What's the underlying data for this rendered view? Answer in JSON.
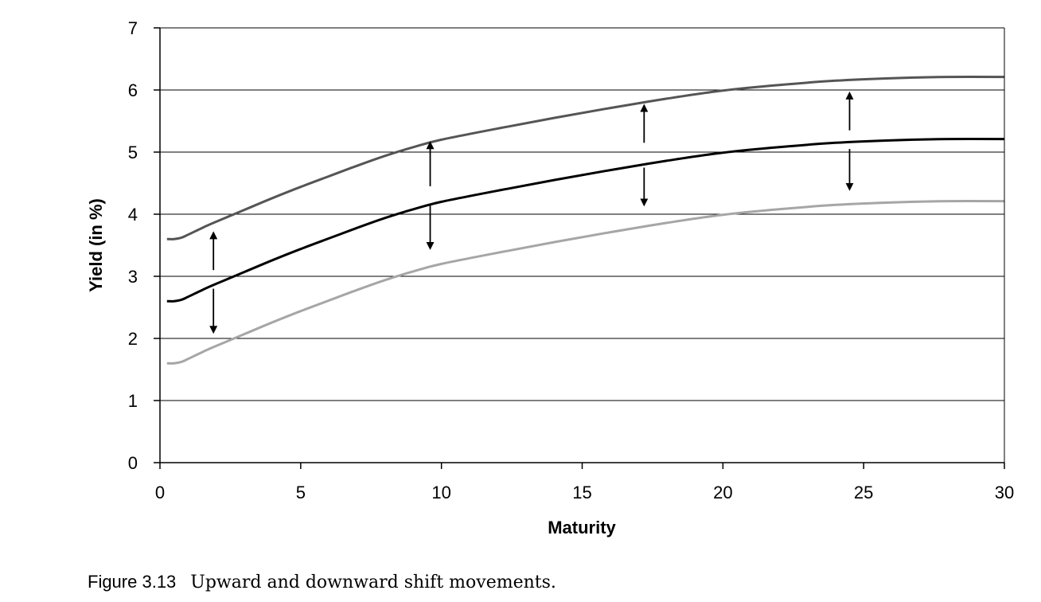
{
  "chart_data": {
    "type": "line",
    "title": "",
    "xlabel": "Maturity",
    "ylabel": "Yield (in %)",
    "xlim": [
      0,
      30
    ],
    "ylim": [
      0,
      7
    ],
    "xticks": [
      0,
      5,
      10,
      15,
      20,
      25,
      30
    ],
    "yticks": [
      0,
      1,
      2,
      3,
      4,
      5,
      6,
      7
    ],
    "grid": "horizontal",
    "legend": "none",
    "x": [
      0.25,
      0.5,
      0.75,
      1,
      1.5,
      2,
      3,
      4,
      5,
      6,
      7,
      8,
      9,
      10,
      12,
      14,
      16,
      18,
      20,
      22,
      24,
      26,
      28,
      30
    ],
    "series": [
      {
        "color": "#555555",
        "values": [
          3.6,
          3.6,
          3.62,
          3.67,
          3.78,
          3.88,
          4.07,
          4.26,
          4.44,
          4.61,
          4.78,
          4.94,
          5.08,
          5.2,
          5.38,
          5.55,
          5.71,
          5.86,
          5.99,
          6.08,
          6.15,
          6.19,
          6.21,
          6.21
        ]
      },
      {
        "color": "#000000",
        "values": [
          2.6,
          2.6,
          2.62,
          2.67,
          2.78,
          2.88,
          3.07,
          3.26,
          3.44,
          3.61,
          3.78,
          3.94,
          4.08,
          4.2,
          4.38,
          4.55,
          4.71,
          4.86,
          4.99,
          5.08,
          5.15,
          5.19,
          5.21,
          5.21
        ]
      },
      {
        "color": "#a6a6a6",
        "values": [
          1.6,
          1.6,
          1.62,
          1.67,
          1.78,
          1.88,
          2.07,
          2.26,
          2.44,
          2.61,
          2.78,
          2.94,
          3.08,
          3.2,
          3.38,
          3.55,
          3.71,
          3.86,
          3.99,
          4.08,
          4.15,
          4.19,
          4.21,
          4.21
        ]
      }
    ],
    "arrows": [
      {
        "x": 1.9,
        "from": 3.1,
        "to": 3.7
      },
      {
        "x": 1.9,
        "from": 2.8,
        "to": 2.1
      },
      {
        "x": 9.6,
        "from": 4.45,
        "to": 5.15
      },
      {
        "x": 9.6,
        "from": 4.15,
        "to": 3.45
      },
      {
        "x": 17.2,
        "from": 5.15,
        "to": 5.75
      },
      {
        "x": 17.2,
        "from": 4.75,
        "to": 4.15
      },
      {
        "x": 24.5,
        "from": 5.35,
        "to": 5.95
      },
      {
        "x": 24.5,
        "from": 5.05,
        "to": 4.4
      }
    ],
    "axis_color": "#000000",
    "grid_color": "#000000"
  },
  "caption": {
    "figure_label": "Figure 3.13",
    "text": "Upward and downward shift movements."
  }
}
